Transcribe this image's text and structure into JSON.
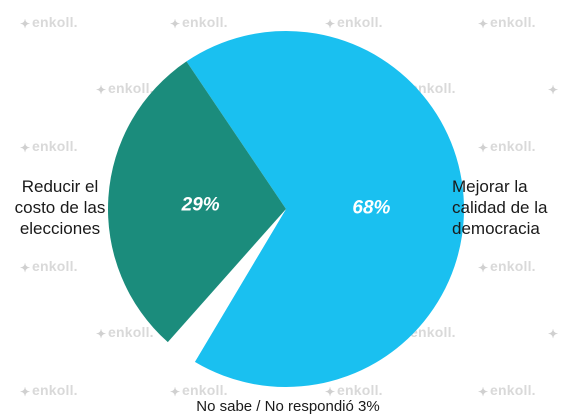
{
  "watermark": {
    "brand": "enkoll",
    "text": "enkoll."
  },
  "chart_data": {
    "type": "pie",
    "title": "",
    "slices": [
      {
        "label_lines": [
          "Mejorar la",
          "calidad de la",
          "democracia"
        ],
        "value": 68,
        "value_label": "68%",
        "color": "#1ac0f0"
      },
      {
        "label_lines": [
          "Reducir el",
          "costo de las",
          "elecciones"
        ],
        "value": 29,
        "value_label": "29%",
        "color": "#1b8c7c"
      },
      {
        "label_lines": [
          "No sabe / No respondió 3%"
        ],
        "value": 3,
        "value_label": "3%",
        "color": "#ffffff"
      }
    ],
    "legend": "none",
    "footer_label": "No sabe  / No respondió 3%"
  }
}
